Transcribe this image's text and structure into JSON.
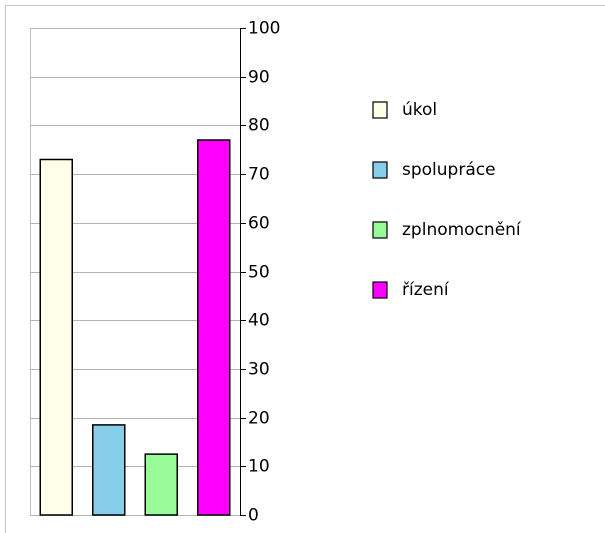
{
  "chart_data": {
    "type": "bar",
    "categories": [
      null
    ],
    "series": [
      {
        "name": "úkol",
        "color": "#ffffe8",
        "values": [
          73
        ]
      },
      {
        "name": "spolupráce",
        "color": "#87ceeb",
        "values": [
          18.5
        ]
      },
      {
        "name": "zplnomocnění",
        "color": "#98fb98",
        "values": [
          12.5
        ]
      },
      {
        "name": "řízení",
        "color": "#ff00ff",
        "values": [
          77
        ]
      }
    ],
    "ylim": [
      0,
      100
    ],
    "yticks": [
      0,
      10,
      20,
      30,
      40,
      50,
      60,
      70,
      80,
      90,
      100
    ],
    "grid": true,
    "legend": "right"
  }
}
